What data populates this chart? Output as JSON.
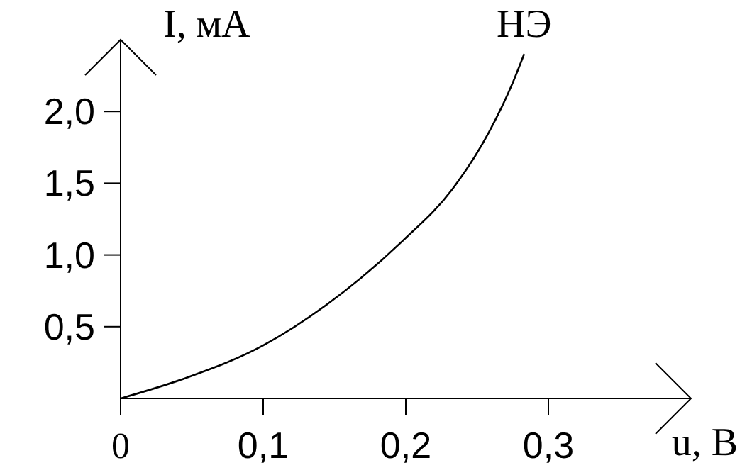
{
  "chart_data": {
    "type": "line",
    "xlabel": "u, В",
    "ylabel": "I, мА",
    "xlim": [
      0,
      0.4
    ],
    "ylim": [
      0,
      2.5
    ],
    "xticks": [
      {
        "value": 0,
        "label": "0"
      },
      {
        "value": 0.1,
        "label": "0,1"
      },
      {
        "value": 0.2,
        "label": "0,2"
      },
      {
        "value": 0.3,
        "label": "0,3"
      }
    ],
    "yticks": [
      {
        "value": 0.5,
        "label": "0,5"
      },
      {
        "value": 1,
        "label": "1,0"
      },
      {
        "value": 1.5,
        "label": "1,5"
      },
      {
        "value": 2,
        "label": "2,0"
      }
    ],
    "grid": false,
    "legend": false,
    "marker": "none",
    "line_style": "solid",
    "series": [
      {
        "name": "НЭ",
        "color": "#000000",
        "x": [
          0,
          0.045,
          0.1,
          0.144,
          0.198,
          0.232,
          0.258,
          0.275,
          0.283
        ],
        "values": [
          0,
          0.14,
          0.37,
          0.65,
          1.1,
          1.45,
          1.85,
          2.2,
          2.4
        ]
      }
    ]
  }
}
